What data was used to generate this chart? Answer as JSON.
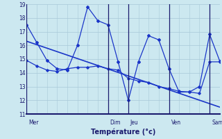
{
  "title": "Température (°c)",
  "background_color": "#cce8f0",
  "grid_color": "#a8c8d8",
  "line_color": "#1a35c8",
  "separator_color": "#1a1a6e",
  "label_color": "#1a1a6e",
  "ylim": [
    11,
    19
  ],
  "yticks": [
    11,
    12,
    13,
    14,
    15,
    16,
    17,
    18,
    19
  ],
  "day_labels": [
    "Mer",
    "Dim",
    "Jeu",
    "Ven",
    "Sam"
  ],
  "day_positions": [
    0,
    16,
    20,
    28,
    36
  ],
  "x_values": [
    0,
    2,
    4,
    6,
    8,
    10,
    12,
    14,
    16,
    18,
    20,
    22,
    24,
    26,
    28,
    30,
    32,
    34,
    36,
    38
  ],
  "temp_main": [
    17.5,
    16.2,
    14.9,
    14.3,
    14.2,
    16.0,
    18.8,
    17.8,
    17.5,
    14.8,
    12.0,
    14.8,
    16.7,
    16.4,
    14.3,
    12.6,
    12.6,
    13.0,
    16.8,
    14.85
  ],
  "temp_low": [
    14.9,
    14.5,
    14.2,
    14.1,
    14.3,
    14.4,
    14.4,
    14.5,
    14.3,
    14.2,
    13.6,
    13.4,
    13.3,
    13.0,
    12.85,
    12.65,
    12.6,
    12.5,
    14.8,
    14.8
  ],
  "trend_start": 16.3,
  "trend_end": 11.5,
  "trend_x_start": 0,
  "trend_x_end": 38,
  "xlim": [
    0,
    38
  ]
}
